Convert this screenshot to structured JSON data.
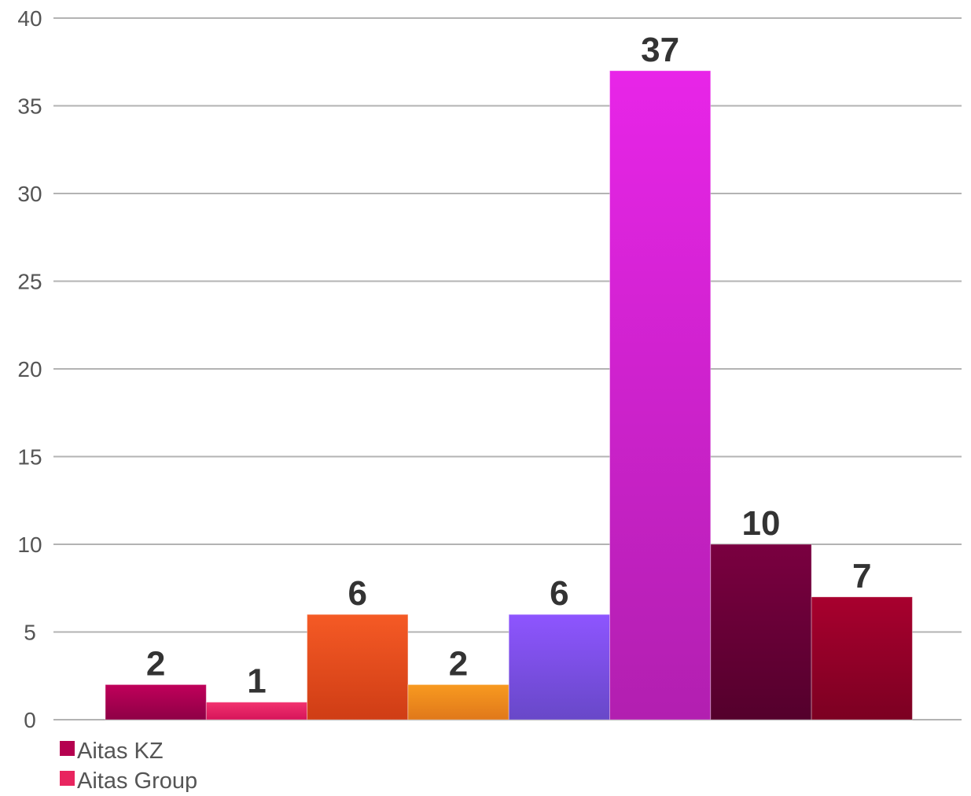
{
  "chart_data": {
    "type": "bar",
    "ylim": [
      0,
      40
    ],
    "yticks": [
      0,
      5,
      10,
      15,
      20,
      25,
      30,
      35,
      40
    ],
    "grid": true,
    "legend_position": "bottom-left",
    "series": [
      {
        "name": "Aitas KZ",
        "value": 2,
        "color_top": "#c0005a",
        "color_bottom": "#8e0046",
        "legend_color": "#b5004f"
      },
      {
        "name": "Aitas Group",
        "value": 1,
        "color_top": "#f2336f",
        "color_bottom": "#d6145a",
        "legend_color": "#e8255f"
      },
      {
        "name": "",
        "value": 6,
        "color_top": "#f55a25",
        "color_bottom": "#cf3d15",
        "legend_color": "#ee5020"
      },
      {
        "name": "",
        "value": 2,
        "color_top": "#f89a20",
        "color_bottom": "#e0781a",
        "legend_color": "#f08a1c"
      },
      {
        "name": "",
        "value": 6,
        "color_top": "#8e55ff",
        "color_bottom": "#6848c8",
        "legend_color": "#8050f0"
      },
      {
        "name": "",
        "value": 37,
        "color_top": "#e825e8",
        "color_bottom": "#b21fb0",
        "legend_color": "#d020d0"
      },
      {
        "name": "",
        "value": 10,
        "color_top": "#7a0040",
        "color_bottom": "#54002c",
        "legend_color": "#6a0038"
      },
      {
        "name": "",
        "value": 7,
        "color_top": "#a8002e",
        "color_bottom": "#7c0022",
        "legend_color": "#980028"
      }
    ],
    "data_labels": [
      "2",
      "1",
      "6",
      "2",
      "6",
      "37",
      "10",
      "7"
    ],
    "tick_labels": [
      "0",
      "5",
      "10",
      "15",
      "20",
      "25",
      "30",
      "35",
      "40"
    ]
  }
}
